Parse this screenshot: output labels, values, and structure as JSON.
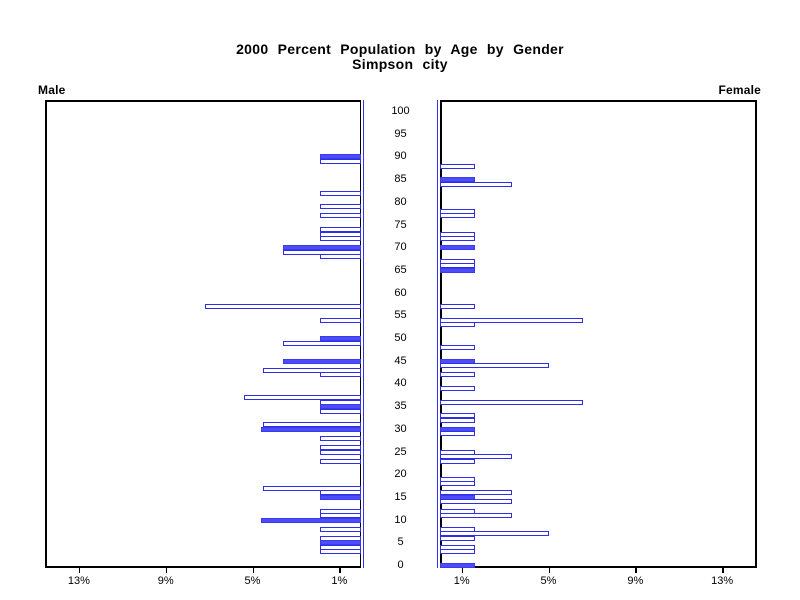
{
  "title": {
    "line1": "2000 Percent Population by Age by Gender",
    "line2": "Simpson city"
  },
  "panel_labels": {
    "left": "Male",
    "right": "Female"
  },
  "colors": {
    "bar_fill": "#4d4df7",
    "bar_border": "#2e2ee8",
    "axis_black": "#000000",
    "center_frame_blue": "#3333f0"
  },
  "chart_data": {
    "type": "bar",
    "variant": "population-pyramid",
    "title": "2000 Percent Population by Age by Gender",
    "subtitle": "Simpson city",
    "legend": "none",
    "grid": false,
    "x_axis": {
      "tick_values": [
        13,
        9,
        5,
        1
      ],
      "tick_labels": [
        "13%",
        "9%",
        "5%",
        "1%"
      ],
      "max_pct": 14.5,
      "mirrored": true
    },
    "y_axis": {
      "unit": "age in years",
      "tick_values": [
        100,
        95,
        90,
        85,
        80,
        75,
        70,
        65,
        60,
        55,
        50,
        45,
        40,
        35,
        30,
        25,
        20,
        15,
        10,
        5,
        0
      ],
      "range": [
        0,
        100
      ]
    },
    "series": [
      {
        "name": "Male",
        "side": "left",
        "points": [
          {
            "age": 90,
            "pct": 1.9,
            "filled": true
          },
          {
            "age": 89,
            "pct": 1.9,
            "filled": false
          },
          {
            "age": 82,
            "pct": 1.9,
            "filled": false
          },
          {
            "age": 79,
            "pct": 1.9,
            "filled": false
          },
          {
            "age": 77,
            "pct": 1.9,
            "filled": false
          },
          {
            "age": 74,
            "pct": 1.9,
            "filled": false
          },
          {
            "age": 73,
            "pct": 1.9,
            "filled": false
          },
          {
            "age": 72,
            "pct": 1.9,
            "filled": false
          },
          {
            "age": 70,
            "pct": 3.6,
            "filled": true
          },
          {
            "age": 69,
            "pct": 3.6,
            "filled": false
          },
          {
            "age": 68,
            "pct": 1.9,
            "filled": false
          },
          {
            "age": 57,
            "pct": 7.2,
            "filled": false
          },
          {
            "age": 54,
            "pct": 1.9,
            "filled": false
          },
          {
            "age": 50,
            "pct": 1.9,
            "filled": true
          },
          {
            "age": 49,
            "pct": 3.6,
            "filled": false
          },
          {
            "age": 45,
            "pct": 3.6,
            "filled": true
          },
          {
            "age": 43,
            "pct": 4.5,
            "filled": false
          },
          {
            "age": 42,
            "pct": 1.9,
            "filled": false
          },
          {
            "age": 37,
            "pct": 5.4,
            "filled": false
          },
          {
            "age": 36,
            "pct": 1.9,
            "filled": false
          },
          {
            "age": 35,
            "pct": 1.9,
            "filled": true
          },
          {
            "age": 34,
            "pct": 1.9,
            "filled": false
          },
          {
            "age": 31,
            "pct": 4.5,
            "filled": false
          },
          {
            "age": 30,
            "pct": 4.6,
            "filled": true
          },
          {
            "age": 28,
            "pct": 1.9,
            "filled": false
          },
          {
            "age": 26,
            "pct": 1.9,
            "filled": false
          },
          {
            "age": 25,
            "pct": 1.9,
            "filled": false
          },
          {
            "age": 23,
            "pct": 1.9,
            "filled": false
          },
          {
            "age": 17,
            "pct": 4.5,
            "filled": false
          },
          {
            "age": 16,
            "pct": 1.9,
            "filled": false
          },
          {
            "age": 15,
            "pct": 1.9,
            "filled": true
          },
          {
            "age": 12,
            "pct": 1.9,
            "filled": false
          },
          {
            "age": 11,
            "pct": 1.9,
            "filled": false
          },
          {
            "age": 10,
            "pct": 4.6,
            "filled": true
          },
          {
            "age": 8,
            "pct": 1.9,
            "filled": false
          },
          {
            "age": 6,
            "pct": 1.9,
            "filled": false
          },
          {
            "age": 5,
            "pct": 1.9,
            "filled": true
          },
          {
            "age": 4,
            "pct": 1.9,
            "filled": false
          },
          {
            "age": 3,
            "pct": 1.9,
            "filled": false
          }
        ]
      },
      {
        "name": "Female",
        "side": "right",
        "points": [
          {
            "age": 88,
            "pct": 1.6,
            "filled": false
          },
          {
            "age": 85,
            "pct": 1.6,
            "filled": true
          },
          {
            "age": 84,
            "pct": 3.3,
            "filled": false
          },
          {
            "age": 78,
            "pct": 1.6,
            "filled": false
          },
          {
            "age": 77,
            "pct": 1.6,
            "filled": false
          },
          {
            "age": 73,
            "pct": 1.6,
            "filled": false
          },
          {
            "age": 72,
            "pct": 1.6,
            "filled": false
          },
          {
            "age": 70,
            "pct": 1.6,
            "filled": true
          },
          {
            "age": 67,
            "pct": 1.6,
            "filled": false
          },
          {
            "age": 66,
            "pct": 1.6,
            "filled": false
          },
          {
            "age": 65,
            "pct": 1.6,
            "filled": true
          },
          {
            "age": 57,
            "pct": 1.6,
            "filled": false
          },
          {
            "age": 54,
            "pct": 6.6,
            "filled": false
          },
          {
            "age": 53,
            "pct": 1.6,
            "filled": false
          },
          {
            "age": 48,
            "pct": 1.6,
            "filled": false
          },
          {
            "age": 45,
            "pct": 1.6,
            "filled": true
          },
          {
            "age": 44,
            "pct": 5.0,
            "filled": false
          },
          {
            "age": 42,
            "pct": 1.6,
            "filled": false
          },
          {
            "age": 39,
            "pct": 1.6,
            "filled": false
          },
          {
            "age": 36,
            "pct": 6.6,
            "filled": false
          },
          {
            "age": 33,
            "pct": 1.6,
            "filled": false
          },
          {
            "age": 32,
            "pct": 1.6,
            "filled": false
          },
          {
            "age": 30,
            "pct": 1.6,
            "filled": true
          },
          {
            "age": 29,
            "pct": 1.6,
            "filled": false
          },
          {
            "age": 25,
            "pct": 1.6,
            "filled": false
          },
          {
            "age": 24,
            "pct": 3.3,
            "filled": false
          },
          {
            "age": 23,
            "pct": 1.6,
            "filled": false
          },
          {
            "age": 19,
            "pct": 1.6,
            "filled": false
          },
          {
            "age": 18,
            "pct": 1.6,
            "filled": false
          },
          {
            "age": 16,
            "pct": 3.3,
            "filled": false
          },
          {
            "age": 15,
            "pct": 1.6,
            "filled": true
          },
          {
            "age": 14,
            "pct": 3.3,
            "filled": false
          },
          {
            "age": 12,
            "pct": 1.6,
            "filled": false
          },
          {
            "age": 11,
            "pct": 3.3,
            "filled": false
          },
          {
            "age": 8,
            "pct": 1.6,
            "filled": false
          },
          {
            "age": 7,
            "pct": 5.0,
            "filled": false
          },
          {
            "age": 6,
            "pct": 1.6,
            "filled": false
          },
          {
            "age": 4,
            "pct": 1.6,
            "filled": false
          },
          {
            "age": 3,
            "pct": 1.6,
            "filled": false
          },
          {
            "age": 0,
            "pct": 1.6,
            "filled": true
          }
        ]
      }
    ]
  }
}
